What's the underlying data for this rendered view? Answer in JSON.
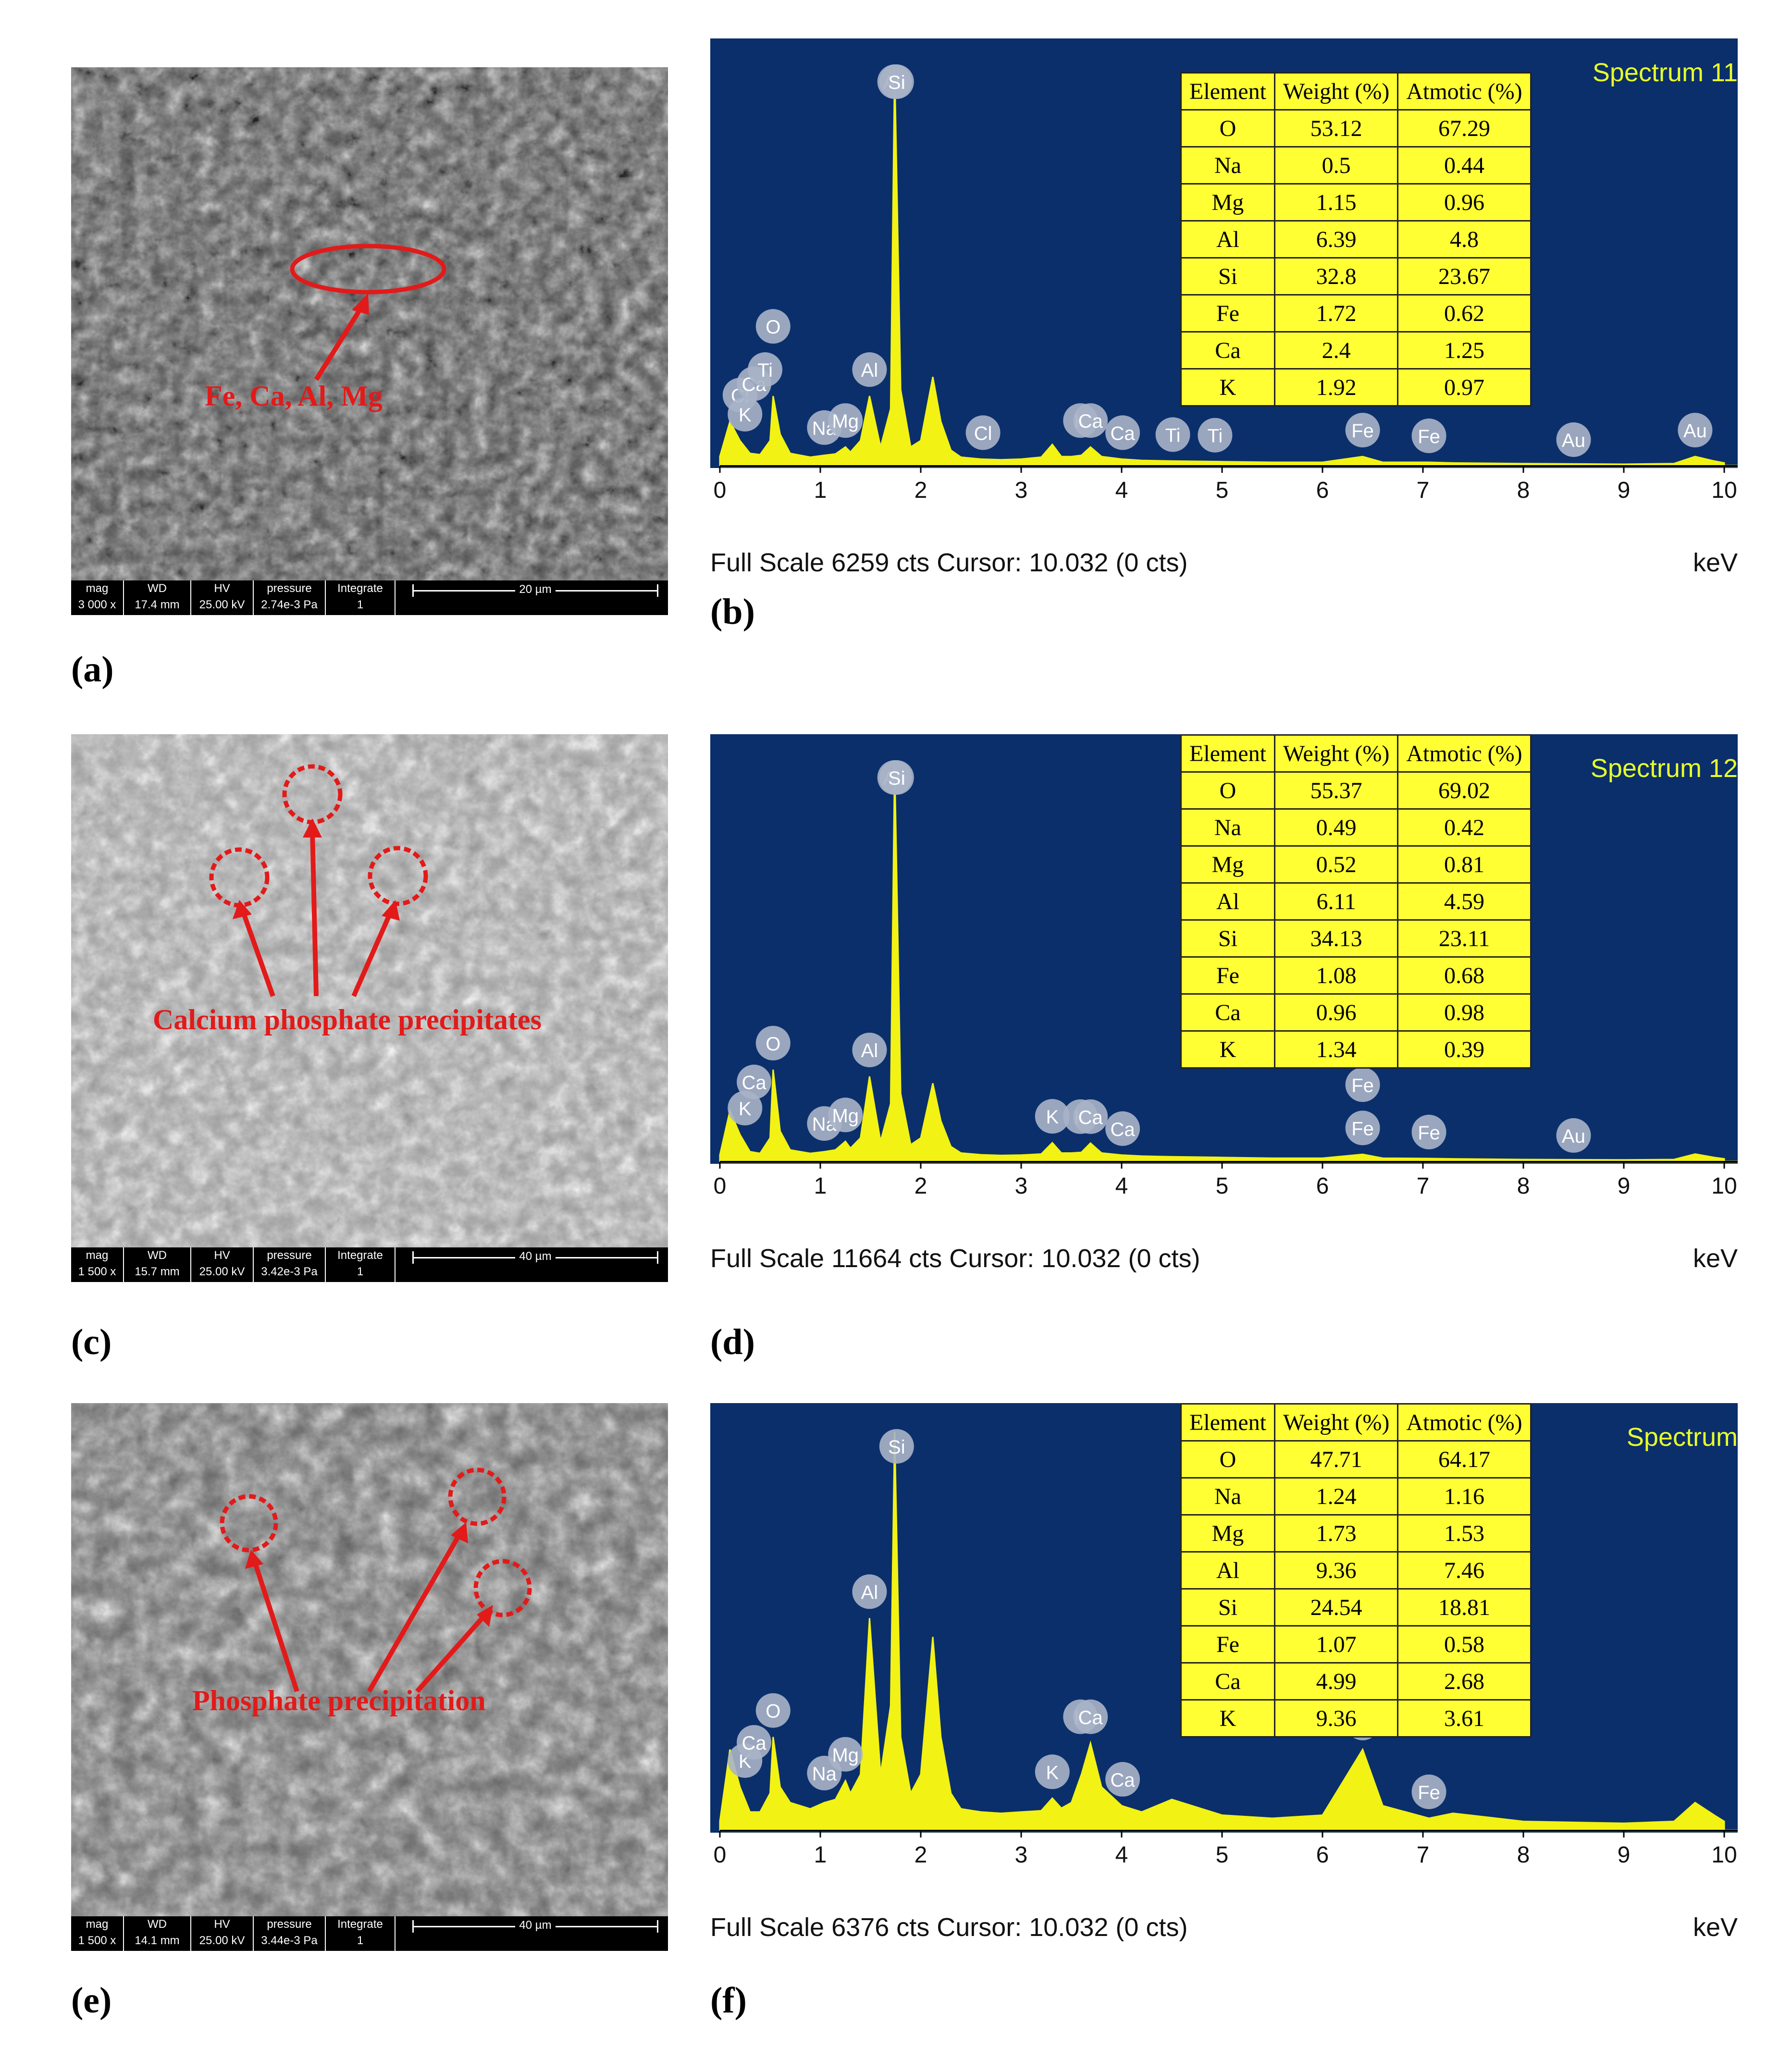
{
  "panels": {
    "a": "(a)",
    "b": "(b)",
    "c": "(c)",
    "d": "(d)",
    "e": "(e)",
    "f": "(f)"
  },
  "sem": [
    {
      "annotation": "Fe, Ca, Al, Mg",
      "databar": {
        "mag_label": "mag",
        "mag": "3 000 x",
        "wd_label": "WD",
        "wd": "17.4 mm",
        "hv_label": "HV",
        "hv": "25.00 kV",
        "pressure_label": "pressure",
        "pressure": "2.74e-3 Pa",
        "integrate_label": "Integrate",
        "integrate": "1",
        "scale": "20 µm"
      }
    },
    {
      "annotation": "Calcium phosphate precipitates",
      "databar": {
        "mag_label": "mag",
        "mag": "1 500 x",
        "wd_label": "WD",
        "wd": "15.7 mm",
        "hv_label": "HV",
        "hv": "25.00 kV",
        "pressure_label": "pressure",
        "pressure": "3.42e-3 Pa",
        "integrate_label": "Integrate",
        "integrate": "1",
        "scale": "40 µm"
      }
    },
    {
      "annotation": "Phosphate precipitation",
      "databar": {
        "mag_label": "mag",
        "mag": "1 500 x",
        "wd_label": "WD",
        "wd": "14.1 mm",
        "hv_label": "HV",
        "hv": "25.00 kV",
        "pressure_label": "pressure",
        "pressure": "3.44e-3 Pa",
        "integrate_label": "Integrate",
        "integrate": "1",
        "scale": "40 µm"
      }
    }
  ],
  "spectra": [
    {
      "title": "Spectrum 11",
      "footer": "Full Scale 6259 cts Cursor: 10.032  (0 cts)",
      "unit": "keV",
      "axis_ticks": [
        "0",
        "1",
        "2",
        "3",
        "4",
        "5",
        "6",
        "7",
        "8",
        "9",
        "10"
      ],
      "table": {
        "headers": [
          "Element",
          "Weight (%)",
          "Atmotic (%)"
        ],
        "rows": [
          [
            "O",
            "53.12",
            "67.29"
          ],
          [
            "Na",
            "0.5",
            "0.44"
          ],
          [
            "Mg",
            "1.15",
            "0.96"
          ],
          [
            "Al",
            "6.39",
            "4.8"
          ],
          [
            "Si",
            "32.8",
            "23.67"
          ],
          [
            "Fe",
            "1.72",
            "0.62"
          ],
          [
            "Ca",
            "2.4",
            "1.25"
          ],
          [
            "K",
            "1.92",
            "0.97"
          ]
        ]
      }
    },
    {
      "title": "Spectrum 12",
      "footer": "Full Scale 11664 cts Cursor: 10.032  (0 cts)",
      "unit": "keV",
      "axis_ticks": [
        "0",
        "1",
        "2",
        "3",
        "4",
        "5",
        "6",
        "7",
        "8",
        "9",
        "10"
      ],
      "table": {
        "headers": [
          "Element",
          "Weight (%)",
          "Atmotic (%)"
        ],
        "rows": [
          [
            "O",
            "55.37",
            "69.02"
          ],
          [
            "Na",
            "0.49",
            "0.42"
          ],
          [
            "Mg",
            "0.52",
            "0.81"
          ],
          [
            "Al",
            "6.11",
            "4.59"
          ],
          [
            "Si",
            "34.13",
            "23.11"
          ],
          [
            "Fe",
            "1.08",
            "0.68"
          ],
          [
            "Ca",
            "0.96",
            "0.98"
          ],
          [
            "K",
            "1.34",
            "0.39"
          ]
        ]
      }
    },
    {
      "title": "Spectrum",
      "footer": "Full Scale 6376 cts Cursor: 10.032  (0 cts)",
      "unit": "keV",
      "axis_ticks": [
        "0",
        "1",
        "2",
        "3",
        "4",
        "5",
        "6",
        "7",
        "8",
        "9",
        "10"
      ],
      "table": {
        "headers": [
          "Element",
          "Weight (%)",
          "Atmotic (%)"
        ],
        "rows": [
          [
            "O",
            "47.71",
            "64.17"
          ],
          [
            "Na",
            "1.24",
            "1.16"
          ],
          [
            "Mg",
            "1.73",
            "1.53"
          ],
          [
            "Al",
            "9.36",
            "7.46"
          ],
          [
            "Si",
            "24.54",
            "18.81"
          ],
          [
            "Fe",
            "1.07",
            "0.58"
          ],
          [
            "Ca",
            "4.99",
            "2.68"
          ],
          [
            "K",
            "9.36",
            "3.61"
          ]
        ]
      }
    }
  ],
  "chart_data": [
    {
      "type": "area",
      "title": "Spectrum 11",
      "xlabel": "keV",
      "xlim": [
        0,
        10
      ],
      "x": [
        0.0,
        0.1,
        0.2,
        0.3,
        0.4,
        0.5,
        0.53,
        0.6,
        0.7,
        0.9,
        1.04,
        1.15,
        1.25,
        1.3,
        1.4,
        1.49,
        1.6,
        1.7,
        1.74,
        1.8,
        1.9,
        2.0,
        2.12,
        2.2,
        2.3,
        2.4,
        2.6,
        2.8,
        3.0,
        3.2,
        3.31,
        3.4,
        3.5,
        3.6,
        3.69,
        3.8,
        4.0,
        4.2,
        4.5,
        5.0,
        5.5,
        6.0,
        6.4,
        6.6,
        7.06,
        7.3,
        8.0,
        9.0,
        9.5,
        9.71,
        9.9,
        10.0
      ],
      "series": [
        {
          "values": [
            150,
            700,
            400,
            200,
            180,
            400,
            1100,
            500,
            200,
            140,
            170,
            190,
            300,
            220,
            400,
            1100,
            300,
            900,
            6259,
            1200,
            300,
            400,
            1400,
            700,
            250,
            140,
            110,
            100,
            110,
            140,
            340,
            150,
            150,
            170,
            300,
            150,
            110,
            90,
            80,
            70,
            60,
            60,
            150,
            60,
            60,
            50,
            40,
            30,
            40,
            150,
            80,
            50
          ]
        }
      ],
      "peaks": [
        "Cl",
        "K",
        "Ca",
        "Ti",
        "O",
        "Fe",
        "Na",
        "Mg",
        "Al",
        "Au",
        "Si",
        "Cl",
        "K",
        "Ca",
        "Ca",
        "Ti",
        "Ti",
        "Fe",
        "Fe",
        "Au",
        "Au"
      ],
      "table": {
        "Element": [
          "O",
          "Na",
          "Mg",
          "Al",
          "Si",
          "Fe",
          "Ca",
          "K"
        ],
        "Weight (%)": [
          53.12,
          0.5,
          1.15,
          6.39,
          32.8,
          1.72,
          2.4,
          1.92
        ],
        "Atmotic (%)": [
          67.29,
          0.44,
          0.96,
          4.8,
          23.67,
          0.62,
          1.25,
          0.97
        ]
      }
    },
    {
      "type": "area",
      "title": "Spectrum 12",
      "xlabel": "keV",
      "xlim": [
        0,
        10
      ],
      "x": [
        0.0,
        0.1,
        0.2,
        0.3,
        0.4,
        0.5,
        0.53,
        0.6,
        0.7,
        0.9,
        1.04,
        1.15,
        1.25,
        1.3,
        1.4,
        1.49,
        1.6,
        1.7,
        1.74,
        1.8,
        1.9,
        2.0,
        2.12,
        2.2,
        2.3,
        2.4,
        2.6,
        2.8,
        3.0,
        3.2,
        3.31,
        3.4,
        3.5,
        3.6,
        3.69,
        3.8,
        4.0,
        4.2,
        4.5,
        5.0,
        5.5,
        6.0,
        6.4,
        6.6,
        7.06,
        7.3,
        8.0,
        9.0,
        9.5,
        9.71,
        9.9,
        10.0
      ],
      "series": [
        {
          "values": [
            200,
            1500,
            800,
            300,
            250,
            700,
            2700,
            900,
            350,
            250,
            300,
            350,
            600,
            400,
            700,
            2500,
            600,
            1700,
            11664,
            2000,
            500,
            700,
            2300,
            1200,
            450,
            260,
            210,
            190,
            200,
            230,
            560,
            260,
            260,
            280,
            550,
            260,
            200,
            170,
            150,
            130,
            110,
            110,
            220,
            110,
            100,
            90,
            70,
            60,
            70,
            230,
            130,
            90
          ]
        }
      ],
      "peaks": [
        "K",
        "Ca",
        "O",
        "Fe",
        "Na",
        "Mg",
        "Al",
        "Au",
        "Si",
        "K",
        "K",
        "Ca",
        "Ca",
        "Fe",
        "Fe",
        "Au"
      ],
      "table": {
        "Element": [
          "O",
          "Na",
          "Mg",
          "Al",
          "Si",
          "Fe",
          "Ca",
          "K"
        ],
        "Weight (%)": [
          55.37,
          0.49,
          0.52,
          6.11,
          34.13,
          1.08,
          0.96,
          1.34
        ],
        "Atmotic (%)": [
          69.02,
          0.42,
          0.81,
          4.59,
          23.11,
          0.68,
          0.98,
          0.39
        ]
      }
    },
    {
      "type": "area",
      "title": "Spectrum",
      "xlabel": "keV",
      "xlim": [
        0,
        10
      ],
      "x": [
        0.0,
        0.1,
        0.2,
        0.3,
        0.4,
        0.5,
        0.53,
        0.6,
        0.7,
        0.9,
        1.04,
        1.15,
        1.25,
        1.3,
        1.4,
        1.49,
        1.6,
        1.7,
        1.74,
        1.8,
        1.9,
        2.0,
        2.12,
        2.2,
        2.3,
        2.4,
        2.6,
        2.8,
        3.0,
        3.2,
        3.31,
        3.4,
        3.5,
        3.6,
        3.69,
        3.8,
        4.0,
        4.2,
        4.5,
        5.0,
        5.5,
        6.0,
        6.4,
        6.6,
        7.06,
        7.3,
        8.0,
        9.0,
        9.5,
        9.71,
        9.9,
        10.0
      ],
      "series": [
        {
          "values": [
            150,
            1300,
            700,
            300,
            300,
            600,
            1500,
            700,
            450,
            350,
            450,
            500,
            800,
            600,
            900,
            3400,
            900,
            2000,
            6376,
            1500,
            600,
            900,
            3100,
            1500,
            600,
            350,
            300,
            280,
            300,
            320,
            520,
            360,
            450,
            900,
            1400,
            700,
            400,
            300,
            500,
            250,
            200,
            250,
            1300,
            400,
            200,
            280,
            150,
            120,
            150,
            450,
            250,
            150
          ]
        }
      ],
      "peaks": [
        "K",
        "Ca",
        "O",
        "Fe",
        "Na",
        "Mg",
        "Al",
        "Si",
        "K",
        "K",
        "Ca",
        "Ca",
        "Fe",
        "Fe"
      ],
      "table": {
        "Element": [
          "O",
          "Na",
          "Mg",
          "Al",
          "Si",
          "Fe",
          "Ca",
          "K"
        ],
        "Weight (%)": [
          47.71,
          1.24,
          1.73,
          9.36,
          24.54,
          1.07,
          4.99,
          9.36
        ],
        "Atmotic (%)": [
          64.17,
          1.16,
          1.53,
          7.46,
          18.81,
          0.58,
          2.68,
          3.61
        ]
      }
    }
  ],
  "colors": {
    "plot_bg": "#0a2f6b",
    "spectrum": "#f2f214",
    "peak_label_bg": "#a9b4c8",
    "table_bg": "#ffff33",
    "annotation": "#e21a1a"
  }
}
